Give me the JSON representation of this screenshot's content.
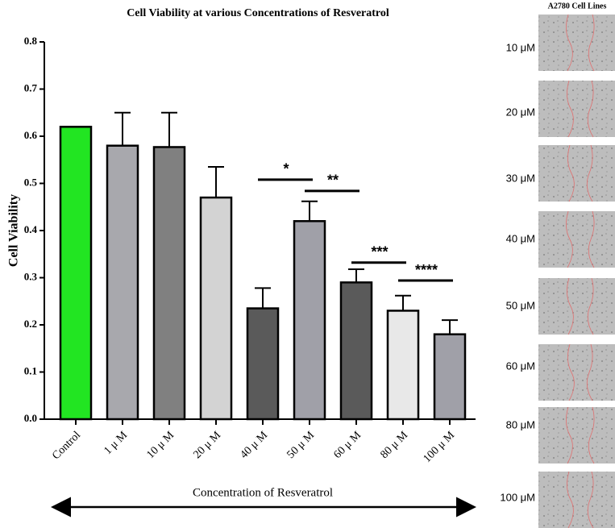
{
  "chart_data": {
    "type": "bar",
    "title": "Cell Viability at various Concentrations of Resveratrol",
    "x_label": "Concentration of Resveratrol",
    "y_label": "Cell Viability",
    "categories": [
      "Control",
      "1 μ M",
      "10 μ M",
      "20 μ M",
      "40 μ M",
      "50 μ M",
      "60 μ M",
      "80 μ M",
      "100 μ M"
    ],
    "values": [
      0.62,
      0.58,
      0.577,
      0.47,
      0.235,
      0.42,
      0.29,
      0.23,
      0.18
    ],
    "errors": [
      null,
      0.07,
      0.073,
      0.065,
      0.043,
      0.042,
      0.028,
      0.032,
      0.03
    ],
    "colors": [
      "#22e522",
      "#a8a8ad",
      "#808080",
      "#d3d3d3",
      "#5a5a5a",
      "#a0a0a8",
      "#5a5a5a",
      "#e8e8e8",
      "#a0a0a8"
    ],
    "ylim": [
      0,
      0.8
    ],
    "yticks": [
      {
        "value": 0,
        "label": "0.0"
      },
      0.1,
      0.2,
      0.3,
      0.4,
      0.5,
      0.6,
      0.7,
      0.8
    ],
    "annotations": [
      {
        "text": "*",
        "y": 0.508
      },
      {
        "text": "**",
        "y": 0.484
      },
      {
        "text": "***",
        "y": 0.332
      },
      {
        "text": "****",
        "y": 0.294
      }
    ]
  },
  "panel": {
    "title": "A2780 Cell Lines",
    "labels": [
      "10 μM",
      "20 μM",
      "30 μM",
      "40 μM",
      "50 μM",
      "60 μM",
      "80 μM",
      "100 μM"
    ]
  }
}
